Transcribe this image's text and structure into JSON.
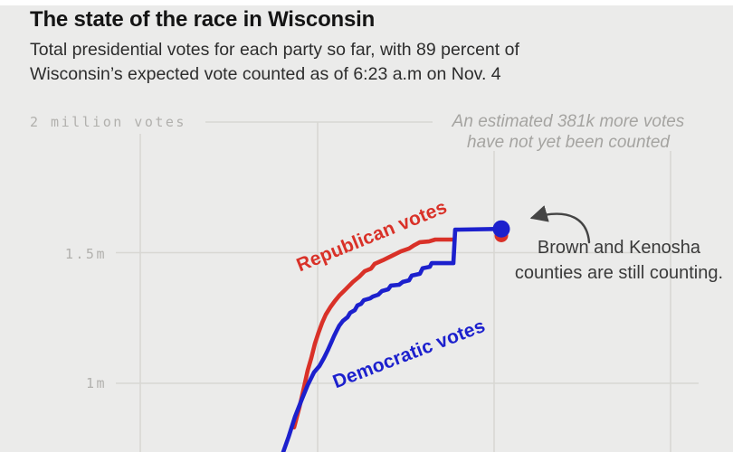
{
  "header": {
    "title": "The state of the race in Wisconsin",
    "subtitle_line1": "Total presidential votes for each party so far, with 89 percent of",
    "subtitle_line2": "Wisconsin’s expected vote counted as of 6:23 a.m on Nov. 4"
  },
  "annotations": {
    "not_counted_line1": "An estimated 381k more votes",
    "not_counted_line2": "have not yet been counted",
    "still_counting_line1": "Brown and Kenosha",
    "still_counting_line2": "counties are still counting."
  },
  "colors": {
    "background": "#ebebea",
    "grid": "#d8d7d3",
    "republican": "#d93128",
    "democratic": "#1c20cd",
    "arrow": "#444444"
  },
  "chart_data": {
    "type": "line",
    "title": "The state of the race in Wisconsin",
    "subtitle": "Total presidential votes for each party so far, with 89 percent of Wisconsin’s expected vote counted as of 6:23 a.m on Nov. 4",
    "units": "votes (millions)",
    "grid": true,
    "y_axis": {
      "ylim_visible": [
        0.73,
        2.05
      ],
      "labels": [
        {
          "text": "2 million votes",
          "value": 2.0
        },
        {
          "text": "1.5m",
          "value": 1.5
        },
        {
          "text": "1m",
          "value": 1.0
        }
      ]
    },
    "x_axis": {
      "description": "time (election night through 6:23 a.m. Nov. 4), tick labels not visible in crop",
      "gridlines_t": [
        0.1914,
        0.4333,
        0.6741,
        0.9148
      ]
    },
    "series": [
      {
        "name": "Republican votes",
        "color": "#d93128",
        "points": [
          [
            0.4012,
            0.831
          ],
          [
            0.4086,
            0.91
          ],
          [
            0.4148,
            0.986
          ],
          [
            0.4198,
            1.049
          ],
          [
            0.4247,
            1.097
          ],
          [
            0.4296,
            1.152
          ],
          [
            0.4346,
            1.194
          ],
          [
            0.4395,
            1.232
          ],
          [
            0.4444,
            1.263
          ],
          [
            0.4506,
            1.291
          ],
          [
            0.4568,
            1.315
          ],
          [
            0.463,
            1.336
          ],
          [
            0.4716,
            1.36
          ],
          [
            0.4815,
            1.388
          ],
          [
            0.4901,
            1.408
          ],
          [
            0.4975,
            1.429
          ],
          [
            0.5062,
            1.439
          ],
          [
            0.5111,
            1.457
          ],
          [
            0.5222,
            1.471
          ],
          [
            0.5346,
            1.488
          ],
          [
            0.5469,
            1.505
          ],
          [
            0.558,
            1.516
          ],
          [
            0.5654,
            1.529
          ],
          [
            0.5728,
            1.54
          ],
          [
            0.5852,
            1.543
          ],
          [
            0.5938,
            1.55
          ],
          [
            0.6173,
            1.55
          ]
        ],
        "end_dot": {
          "t": 0.684,
          "v": 1.571
        }
      },
      {
        "name": "Democratic votes",
        "color": "#1c20cd",
        "points": [
          [
            0.3864,
            0.737
          ],
          [
            0.3938,
            0.796
          ],
          [
            0.4025,
            0.872
          ],
          [
            0.4111,
            0.934
          ],
          [
            0.4198,
            0.993
          ],
          [
            0.4284,
            1.042
          ],
          [
            0.4358,
            1.066
          ],
          [
            0.442,
            1.097
          ],
          [
            0.4469,
            1.125
          ],
          [
            0.4519,
            1.156
          ],
          [
            0.4556,
            1.18
          ],
          [
            0.4593,
            1.201
          ],
          [
            0.463,
            1.221
          ],
          [
            0.4679,
            1.239
          ],
          [
            0.4741,
            1.253
          ],
          [
            0.4778,
            1.27
          ],
          [
            0.484,
            1.28
          ],
          [
            0.4877,
            1.298
          ],
          [
            0.4926,
            1.304
          ],
          [
            0.4963,
            1.318
          ],
          [
            0.5049,
            1.325
          ],
          [
            0.5086,
            1.332
          ],
          [
            0.516,
            1.339
          ],
          [
            0.521,
            1.353
          ],
          [
            0.5296,
            1.36
          ],
          [
            0.5333,
            1.374
          ],
          [
            0.5444,
            1.377
          ],
          [
            0.5494,
            1.388
          ],
          [
            0.558,
            1.394
          ],
          [
            0.5617,
            1.412
          ],
          [
            0.5728,
            1.419
          ],
          [
            0.5765,
            1.44
          ],
          [
            0.5864,
            1.446
          ],
          [
            0.5889,
            1.46
          ],
          [
            0.6185,
            1.46
          ],
          [
            0.621,
            1.588
          ],
          [
            0.684,
            1.591
          ]
        ],
        "end_dot": {
          "t": 0.684,
          "v": 1.591
        }
      }
    ],
    "legend_position": "inline-rotated-labels",
    "annotations": [
      "An estimated 381k more votes have not yet been counted",
      "Brown and Kenosha counties are still counting."
    ]
  }
}
